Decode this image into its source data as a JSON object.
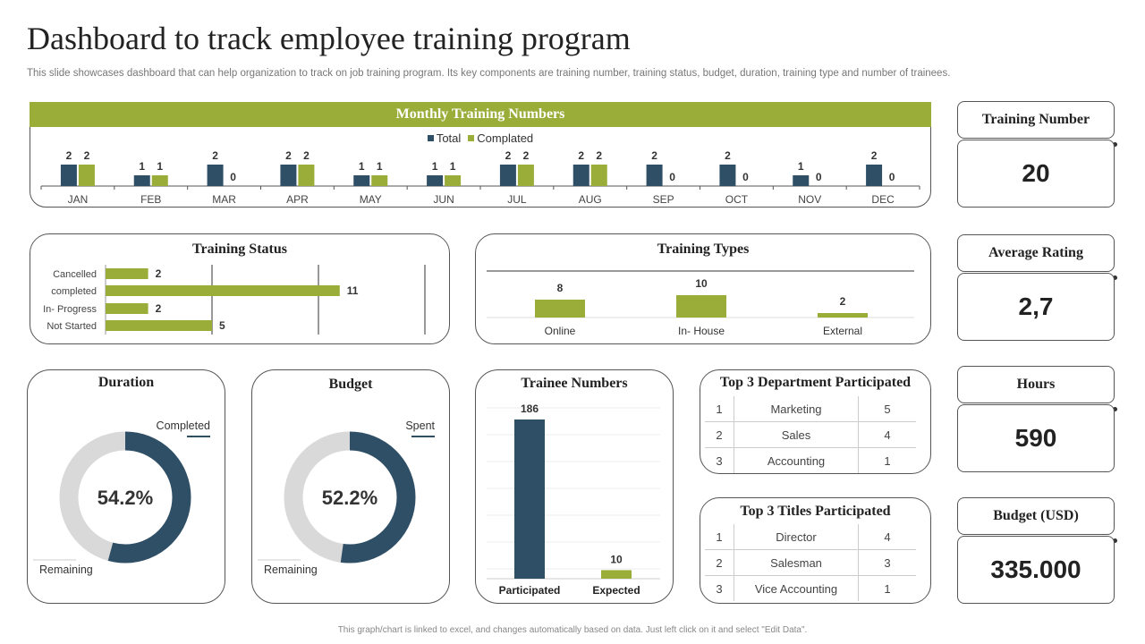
{
  "page": {
    "title": "Dashboard to track employee training program",
    "subtitle": "This slide showcases dashboard that can help organization to track on job training program. Its key components are training number, training status, budget, duration, training type and number of trainees.",
    "footer": "This graph/chart is linked to excel, and changes automatically based on data. Just left click on it and select \"Edit Data\"."
  },
  "colors": {
    "navy": "#2f4f67",
    "green": "#9aad39",
    "gray": "#d9d9d9"
  },
  "kpis": [
    {
      "label": "Training Number",
      "value": "20"
    },
    {
      "label": "Average Rating",
      "value": "2,7"
    },
    {
      "label": "Hours",
      "value": "590"
    },
    {
      "label": "Budget (USD)",
      "value": "335.000"
    }
  ],
  "dept_table": {
    "title": "Top 3 Department Participated",
    "rows": [
      [
        "1",
        "Marketing",
        "5"
      ],
      [
        "2",
        "Sales",
        "4"
      ],
      [
        "3",
        "Accounting",
        "1"
      ]
    ]
  },
  "titles_table": {
    "title": "Top 3 Titles Participated",
    "rows": [
      [
        "1",
        "Director",
        "4"
      ],
      [
        "2",
        "Salesman",
        "3"
      ],
      [
        "3",
        "Vice Accounting",
        "1"
      ]
    ]
  },
  "chart_data": [
    {
      "type": "bar",
      "title": "Monthly Training Numbers",
      "categories": [
        "JAN",
        "FEB",
        "MAR",
        "APR",
        "MAY",
        "JUN",
        "JUL",
        "AUG",
        "SEP",
        "OCT",
        "NOV",
        "DEC"
      ],
      "series": [
        {
          "name": "Total",
          "values": [
            2,
            1,
            2,
            2,
            1,
            1,
            2,
            2,
            2,
            2,
            1,
            2
          ]
        },
        {
          "name": "Complated",
          "values": [
            2,
            1,
            0,
            2,
            1,
            1,
            2,
            2,
            0,
            0,
            0,
            0
          ]
        }
      ],
      "legend": "top",
      "ylim": [
        0,
        2
      ]
    },
    {
      "type": "bar",
      "orientation": "horizontal",
      "title": "Training Status",
      "categories": [
        "Cancelled",
        "completed",
        "In- Progress",
        "Not Started"
      ],
      "values": [
        2,
        11,
        2,
        5
      ],
      "xlim": [
        0,
        15
      ],
      "grid": true
    },
    {
      "type": "bar",
      "title": "Training Types",
      "categories": [
        "Online",
        "In- House",
        "External"
      ],
      "values": [
        8,
        10,
        2
      ]
    },
    {
      "type": "pie",
      "donut": true,
      "title": "Duration",
      "center_label": "54.2%",
      "categories": [
        "Completed",
        "Remaining"
      ],
      "values": [
        54.2,
        45.8
      ]
    },
    {
      "type": "pie",
      "donut": true,
      "title": "Budget",
      "center_label": "52.2%",
      "categories": [
        "Spent",
        "Remaining"
      ],
      "values": [
        52.2,
        47.8
      ]
    },
    {
      "type": "bar",
      "title": "Trainee Numbers",
      "categories": [
        "Participated",
        "Expected"
      ],
      "values": [
        186,
        10
      ],
      "ylim": [
        0,
        200
      ]
    }
  ]
}
